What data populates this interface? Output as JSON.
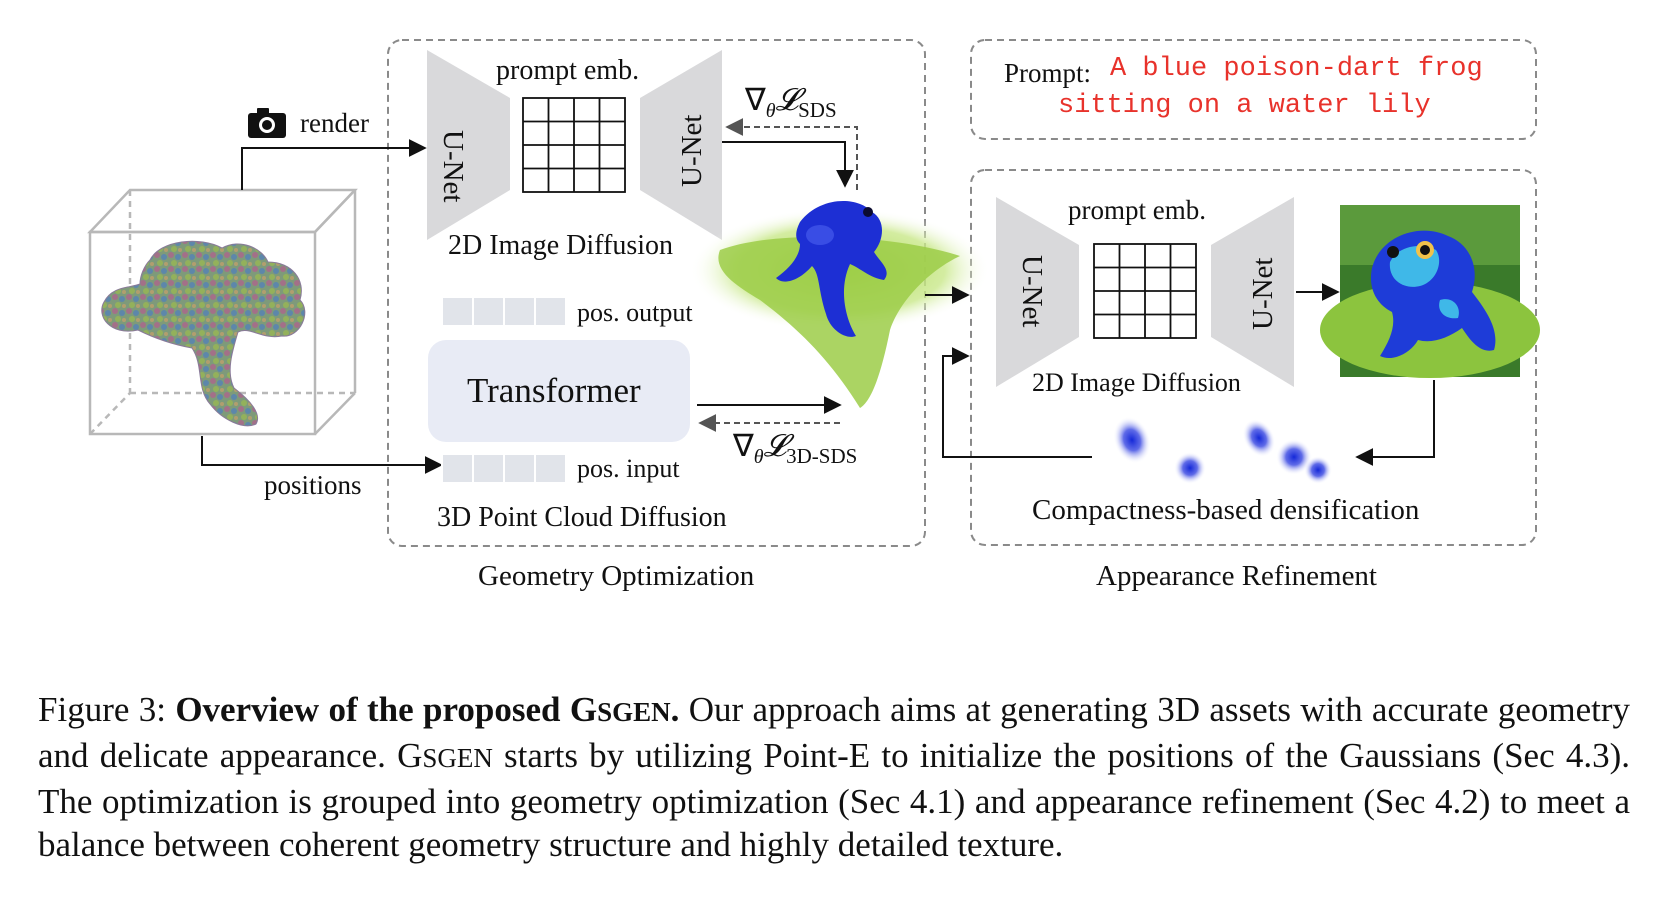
{
  "geometry": {
    "render_label": "render",
    "positions_label": "positions",
    "unet_left": "U-Net",
    "unet_right": "U-Net",
    "prompt_emb": "prompt emb.",
    "grad_sds_main": "∇",
    "grad_sds_theta": "θ",
    "grad_sds_loss": "𝓛",
    "grad_sds_sub": "SDS",
    "image_diffusion_title": "2D Image Diffusion",
    "pos_output": "pos. output",
    "transformer": "Transformer",
    "grad_3d_main": "∇",
    "grad_3d_theta": "θ",
    "grad_3d_loss": "𝓛",
    "grad_3d_sub": "3D-SDS",
    "pos_input": "pos. input",
    "point_cloud_title": "3D Point Cloud Diffusion",
    "section_label": "Geometry Optimization"
  },
  "appearance": {
    "prompt_label": "Prompt:",
    "prompt_line1": "A blue poison-dart frog",
    "prompt_line2": "sitting on a water lily",
    "prompt_color": "#e8322b",
    "unet_left": "U-Net",
    "unet_right": "U-Net",
    "prompt_emb": "prompt emb.",
    "image_diffusion_title": "2D Image Diffusion",
    "densification_label": "Compactness-based densification",
    "section_label": "Appearance Refinement"
  },
  "colors": {
    "unet_fill": "#d9d9db",
    "transformer_fill": "#e8ebf5",
    "token_fill": "#e1e4ea",
    "dashed_border": "#8a8a8a",
    "gaussian_blue": "#1f2fd6"
  },
  "icons": [
    "camera-icon",
    "bounding-cube-icon",
    "point-cloud-blob-icon",
    "frog-render-icon",
    "frog-image-icon",
    "gaussian-blobs-icon"
  ],
  "caption": {
    "figure_label": "Figure 3:",
    "title_bold_prefix": "Overview of the proposed ",
    "title_name_g": "G",
    "title_name_rest": "sgen",
    "title_period": ".",
    "body_part1": " Our approach aims at generating 3D assets with accurate geometry and delicate appearance. ",
    "name2_g": "G",
    "name2_rest": "sgen",
    "body_part2": " starts by utilizing Point-E to initialize the positions of the Gaussians (Sec 4.3). The optimization is grouped into geometry optimization (Sec 4.1) and appearance refinement (Sec 4.2) to meet a balance between coherent geometry structure and highly detailed texture."
  }
}
